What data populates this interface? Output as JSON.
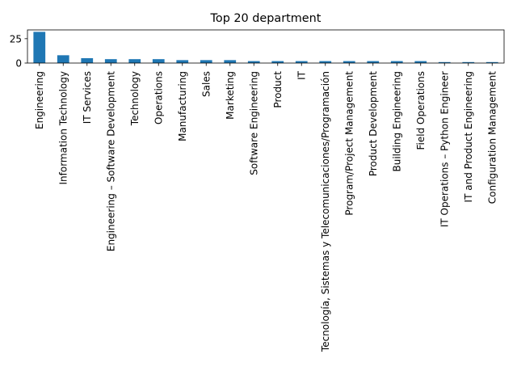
{
  "chart_data": {
    "type": "bar",
    "title": "Top 20 department",
    "xlabel": "",
    "ylabel": "",
    "ylim": [
      0,
      34
    ],
    "yticks": [
      0,
      25
    ],
    "grid": false,
    "legend": "none",
    "bar_color": "#1f77b4",
    "categories": [
      "Engineering",
      "Information Technology",
      "IT Services",
      "Engineering – Software Development",
      "Technology",
      "Operations",
      "Manufacturing",
      "Sales",
      "Marketing",
      "Software Engineering",
      "Product",
      "IT",
      "Tecnología, Sistemas y Telecomunicaciones/Programación",
      "Program/Project Management",
      "Product Development",
      "Building Engineering",
      "Field Operations",
      "IT Operations – Python Engineer",
      "IT and Product Engineering",
      "Configuration Management"
    ],
    "values": [
      32,
      8,
      5,
      4,
      4,
      4,
      3,
      3,
      3,
      2,
      2,
      2,
      2,
      2,
      2,
      2,
      2,
      1,
      1,
      1
    ]
  }
}
